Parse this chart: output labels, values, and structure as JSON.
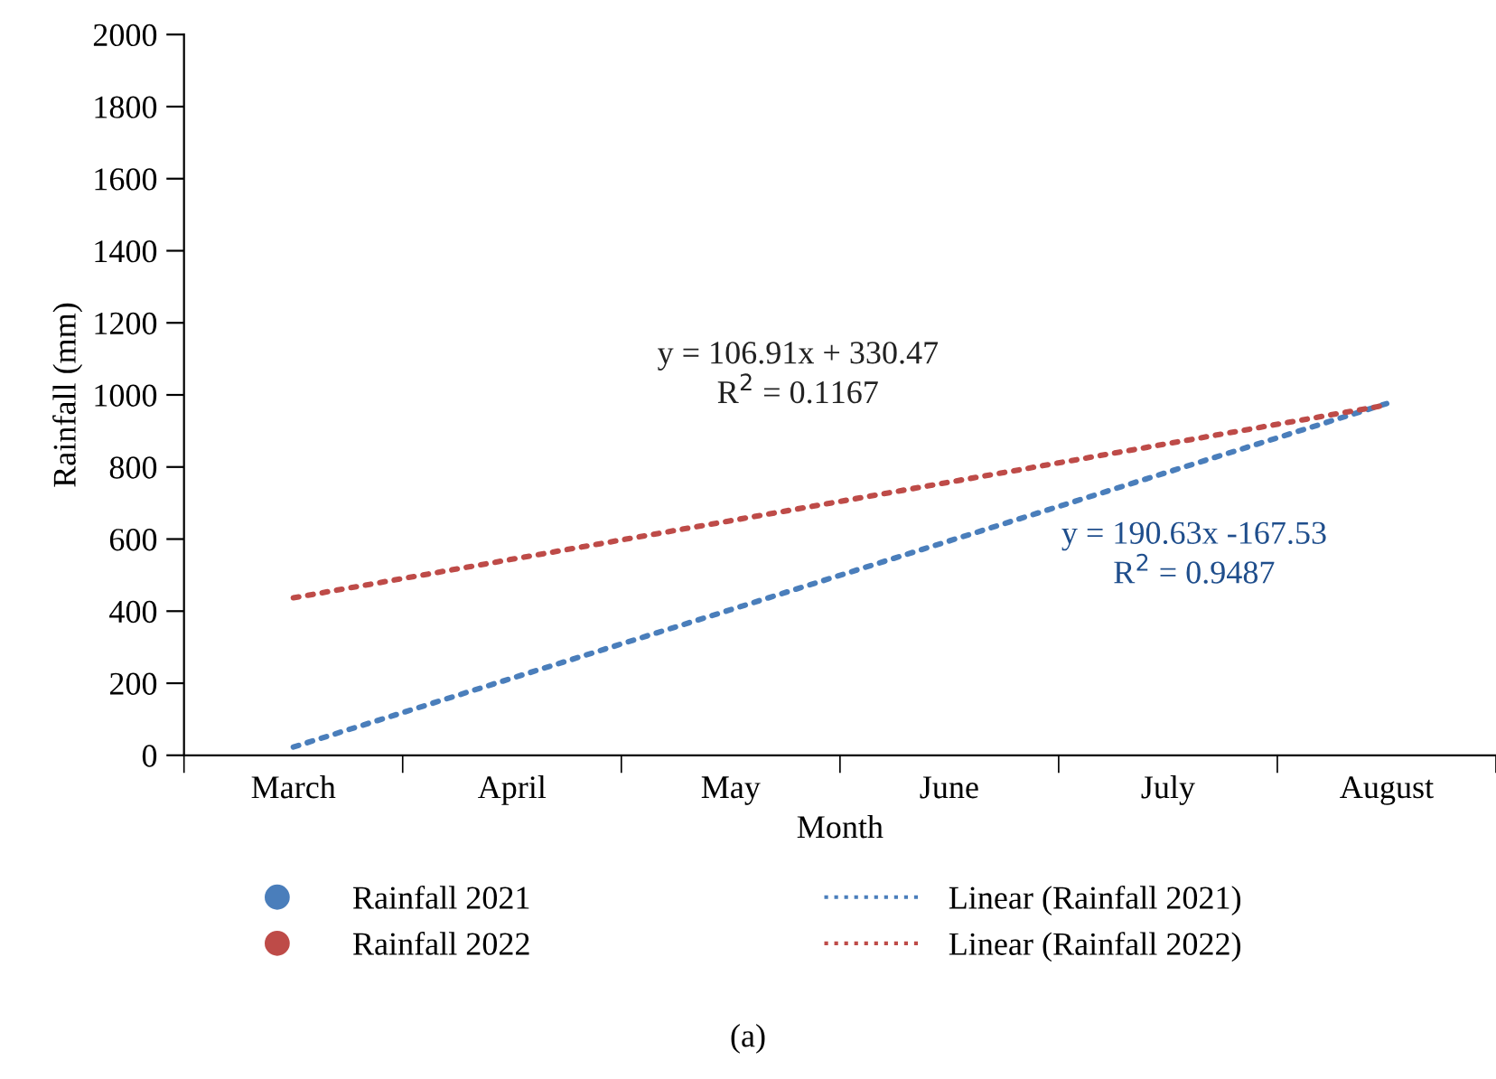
{
  "chart_data": {
    "type": "line",
    "xlabel": "Month",
    "ylabel": "Rainfall (mm)",
    "categories": [
      "March",
      "April",
      "May",
      "June",
      "July",
      "August"
    ],
    "series": [
      {
        "name": "Rainfall 2021",
        "type": "scatter",
        "marker": "circle",
        "color": "#4a7ebb",
        "values": [
          null,
          null,
          null,
          null,
          null,
          null
        ]
      },
      {
        "name": "Linear (Rainfall 2021)",
        "color": "#4a7ebb",
        "line_style": "dotted",
        "values": [
          23,
          214,
          404,
          595,
          786,
          976
        ]
      },
      {
        "name": "Rainfall 2022",
        "type": "scatter",
        "marker": "circle",
        "color": "#be4b48",
        "values": [
          null,
          null,
          null,
          null,
          null,
          null
        ]
      },
      {
        "name": "Linear (Rainfall 2022)",
        "color": "#be4b48",
        "line_style": "dotted",
        "values": [
          437,
          544,
          651,
          758,
          865,
          972
        ]
      }
    ],
    "ylim": [
      0,
      2000
    ],
    "yticks": [
      0,
      200,
      400,
      600,
      800,
      1000,
      1200,
      1400,
      1600,
      1800,
      2000
    ],
    "grid": false,
    "legend": "bottom",
    "annotations": [
      "y = 106.91x + 330.47\nR$^{2}$ = 0.1167",
      "y = 190.63x -167.53\nR$^{2}$ = 0.9487",
      "(a)"
    ]
  }
}
